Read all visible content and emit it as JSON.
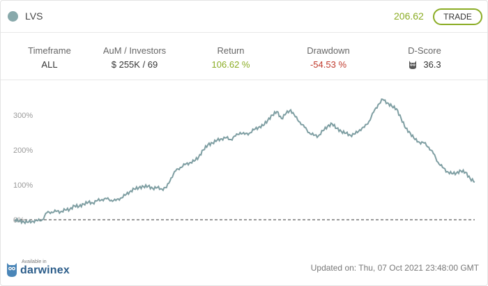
{
  "header": {
    "symbol": "LVS",
    "price": "206.62",
    "trade_label": "TRADE"
  },
  "stats": [
    {
      "label": "Timeframe",
      "value": "ALL",
      "tone": "neutral"
    },
    {
      "label": "AuM / Investors",
      "value": "$ 255K / 69",
      "tone": "neutral"
    },
    {
      "label": "Return",
      "value": "106.62 %",
      "tone": "green"
    },
    {
      "label": "Drawdown",
      "value": "-54.53 %",
      "tone": "red"
    },
    {
      "label": "D-Score",
      "value": "36.3",
      "tone": "neutral",
      "icon": "owl-icon"
    }
  ],
  "chart_data": {
    "type": "line",
    "title": "",
    "xlabel": "",
    "ylabel": "",
    "ylim": [
      -20,
      360
    ],
    "y_ticks": [
      {
        "value": 0,
        "label": "0%"
      },
      {
        "value": 100,
        "label": "100%"
      },
      {
        "value": 200,
        "label": "200%"
      },
      {
        "value": 300,
        "label": "300%"
      }
    ],
    "baseline": 0,
    "series": [
      {
        "name": "LVS return",
        "color": "#7e9ea2",
        "x": [
          0,
          1,
          2,
          3,
          4,
          5,
          6,
          7,
          8,
          9,
          10,
          11,
          12,
          13,
          14,
          15,
          16,
          17,
          18,
          19,
          20,
          21,
          22,
          23,
          24,
          25,
          26,
          27,
          28,
          29,
          30,
          31,
          32,
          33,
          34,
          35,
          36,
          37,
          38,
          39,
          40,
          41,
          42,
          43,
          44,
          45,
          46,
          47,
          48,
          49,
          50,
          51,
          52,
          53,
          54,
          55,
          56,
          57,
          58,
          59,
          60,
          61,
          62,
          63,
          64,
          65,
          66,
          67,
          68,
          69,
          70,
          71,
          72,
          73,
          74,
          75,
          76,
          77,
          78,
          79,
          80,
          81,
          82,
          83,
          84,
          85,
          86,
          87,
          88,
          89,
          90,
          91,
          92,
          93,
          94,
          95,
          96,
          97,
          98,
          99,
          100
        ],
        "values": [
          0,
          -4,
          -6,
          -7,
          -4,
          -3,
          0,
          20,
          22,
          24,
          23,
          28,
          30,
          40,
          38,
          45,
          50,
          48,
          55,
          58,
          60,
          56,
          55,
          62,
          70,
          80,
          88,
          92,
          95,
          96,
          90,
          92,
          88,
          92,
          120,
          140,
          150,
          158,
          163,
          168,
          180,
          200,
          215,
          220,
          228,
          232,
          235,
          230,
          240,
          250,
          245,
          248,
          258,
          265,
          270,
          285,
          300,
          310,
          290,
          305,
          315,
          295,
          280,
          265,
          250,
          242,
          240,
          255,
          268,
          275,
          262,
          253,
          248,
          242,
          246,
          258,
          265,
          282,
          308,
          330,
          345,
          335,
          325,
          318,
          290,
          262,
          248,
          230,
          222,
          220,
          208,
          190,
          165,
          150,
          138,
          132,
          134,
          140,
          136,
          118,
          108
        ]
      }
    ]
  },
  "footer": {
    "available_in": "Available in",
    "brand": "darwinex",
    "updated": "Updated on: Thu, 07 Oct 2021 23:48:00 GMT"
  },
  "colors": {
    "accent_green": "#8aac23",
    "negative_red": "#c0392b",
    "line": "#7e9ea2",
    "brand_blue": "#2c5d8a"
  }
}
